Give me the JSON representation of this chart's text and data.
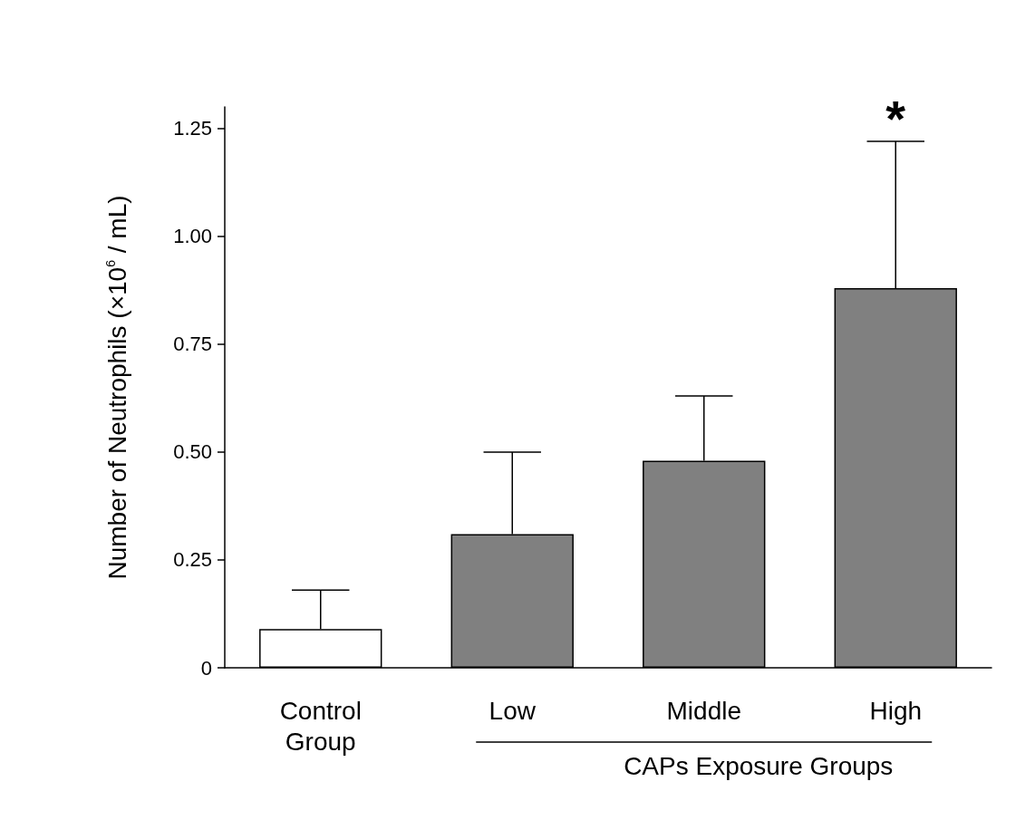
{
  "chart_data": {
    "type": "bar",
    "ylabel": "Number of Neutrophils (×10$^{6}$ / mL)",
    "categories": [
      "Control\nGroup",
      "Low",
      "Middle",
      "High"
    ],
    "values": [
      0.09,
      0.31,
      0.48,
      0.88
    ],
    "colors": [
      "#ffffff",
      "#808080",
      "#808080",
      "#808080"
    ],
    "errors": [
      [
        0.09,
        0.18
      ],
      [
        0.31,
        0.5
      ],
      [
        0.48,
        0.63
      ],
      [
        0.88,
        1.22
      ]
    ],
    "ylim": [
      0,
      1.3
    ],
    "yticks": [
      {
        "value": 0,
        "label": "0"
      },
      0.25,
      {
        "value": 0.5,
        "label": "0.50"
      },
      0.75,
      {
        "value": 1,
        "label": "1.00"
      },
      1.25
    ],
    "grid": false,
    "annotations": [
      {
        "text": "*",
        "x": "High",
        "y": 1.22
      },
      "CAPs Exposure Groups"
    ]
  }
}
